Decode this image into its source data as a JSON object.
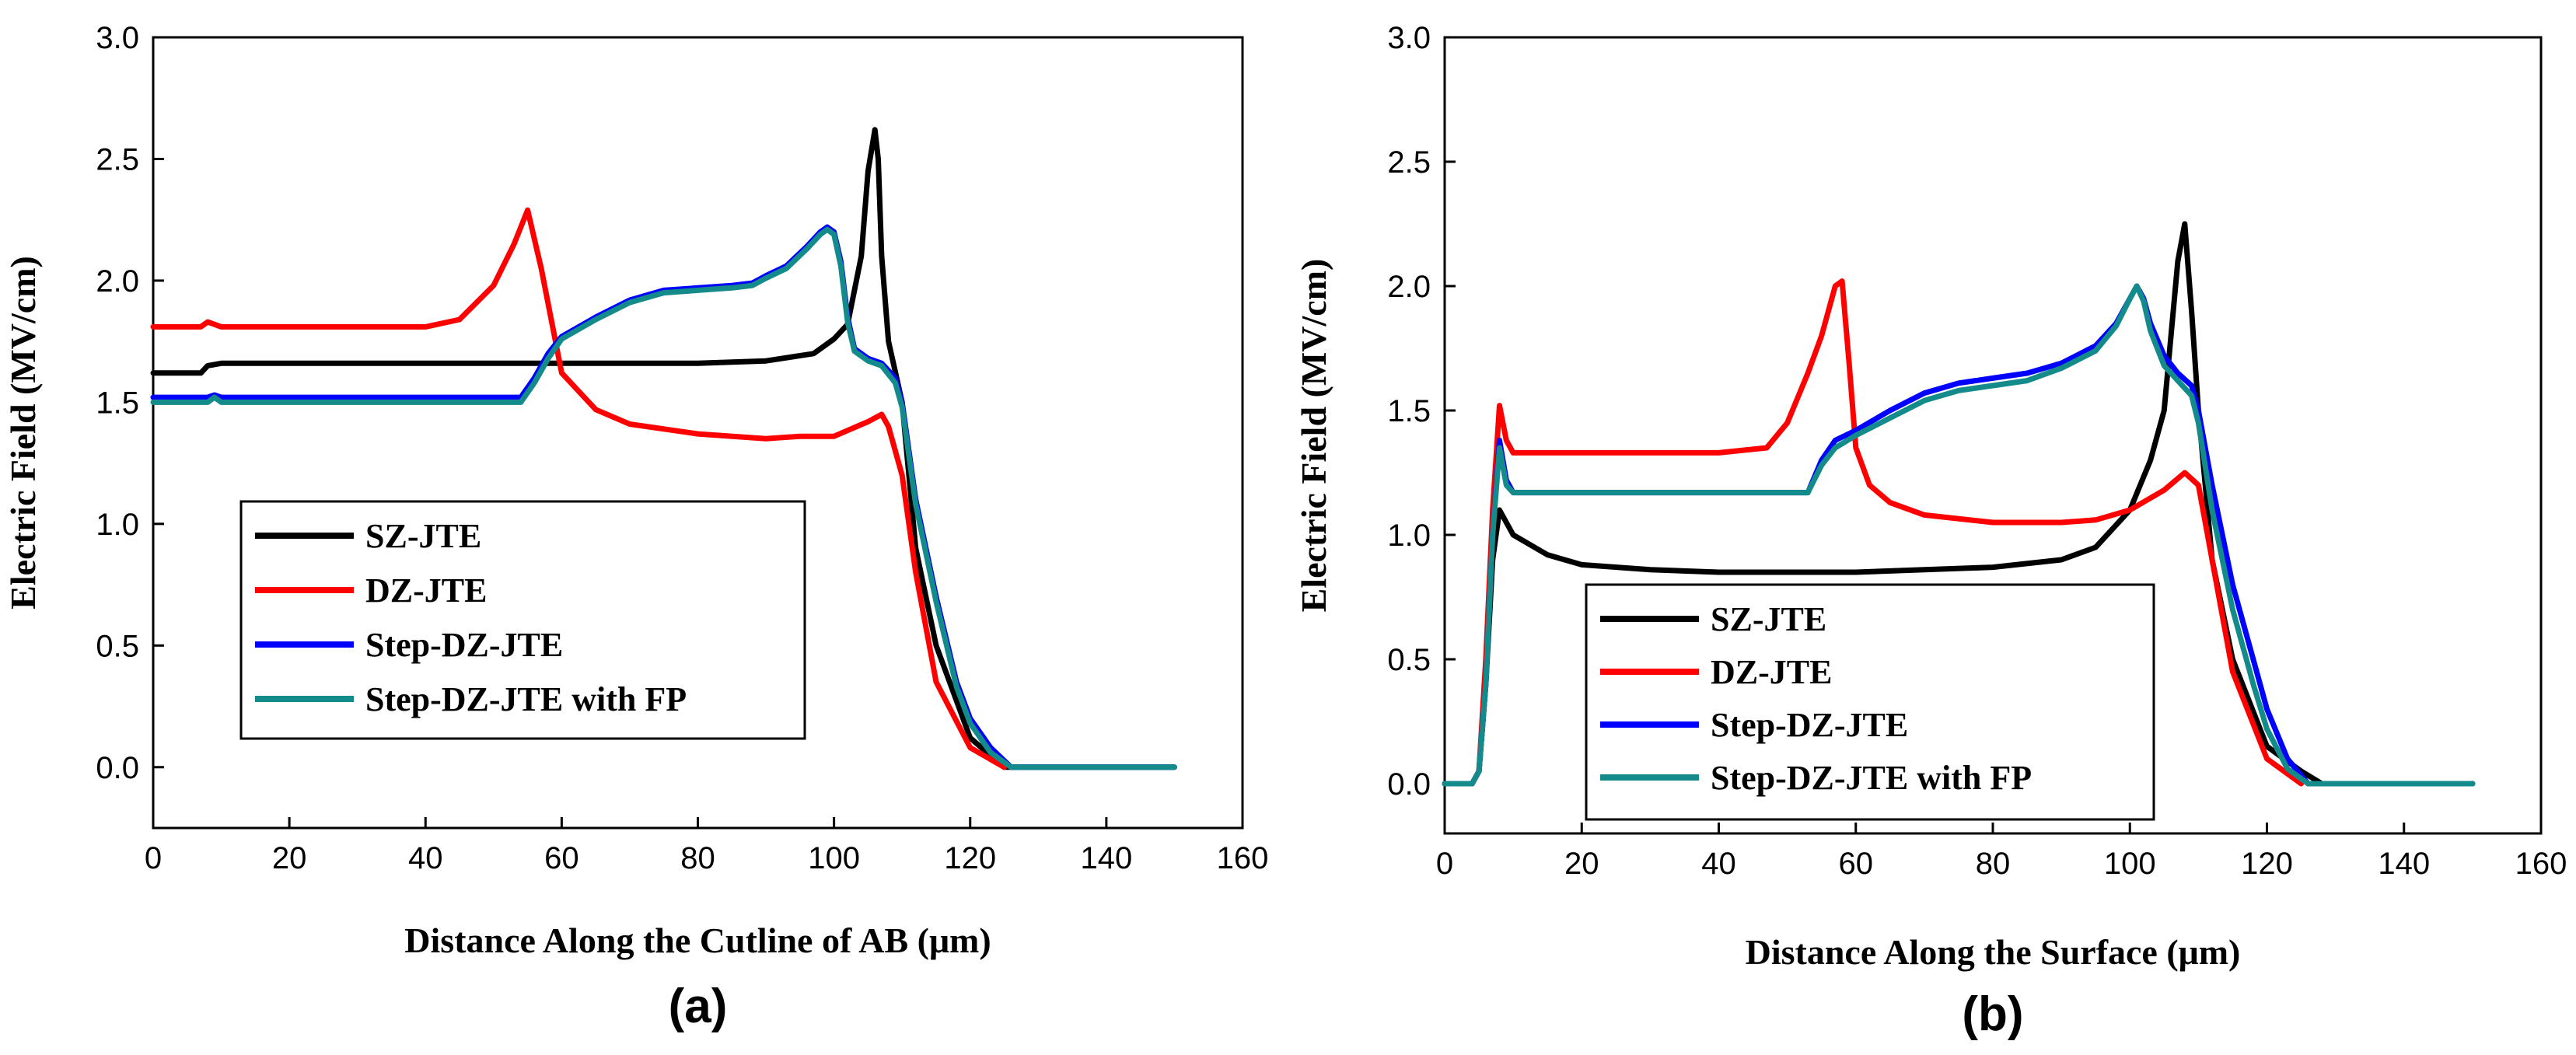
{
  "chart_data": [
    {
      "type": "line",
      "panel_label": "(a)",
      "xlabel": "Distance Along the Cutline of AB (μm)",
      "ylabel": "Electric Field (MV/cm)",
      "xlim": [
        0,
        160
      ],
      "ylim": [
        -0.25,
        3.0
      ],
      "xticks": [
        "0",
        "20",
        "40",
        "60",
        "80",
        "100",
        "120",
        "140",
        "160"
      ],
      "yticks": [
        "0.0",
        "0.5",
        "1.0",
        "1.5",
        "2.0",
        "2.5",
        "3.0"
      ],
      "grid": false,
      "legend_position": "lower-left",
      "series": [
        {
          "name": "SZ-JTE",
          "color": "#000000",
          "x": [
            0,
            7,
            8,
            10,
            20,
            40,
            60,
            80,
            90,
            97,
            100,
            102,
            104,
            105,
            106,
            106.5,
            107,
            108,
            110,
            112,
            115,
            120,
            125,
            150
          ],
          "y": [
            1.62,
            1.62,
            1.65,
            1.66,
            1.66,
            1.66,
            1.66,
            1.66,
            1.67,
            1.7,
            1.76,
            1.82,
            2.1,
            2.45,
            2.62,
            2.5,
            2.1,
            1.75,
            1.5,
            0.9,
            0.5,
            0.12,
            0.0,
            0.0
          ]
        },
        {
          "name": "DZ-JTE",
          "color": "#ff0000",
          "x": [
            0,
            7,
            8,
            10,
            20,
            40,
            45,
            50,
            53,
            55,
            57,
            60,
            65,
            70,
            80,
            90,
            95,
            100,
            105,
            107,
            108,
            110,
            112,
            115,
            120,
            125
          ],
          "y": [
            1.81,
            1.81,
            1.83,
            1.81,
            1.81,
            1.81,
            1.84,
            1.98,
            2.15,
            2.29,
            2.05,
            1.62,
            1.47,
            1.41,
            1.37,
            1.35,
            1.36,
            1.36,
            1.42,
            1.45,
            1.4,
            1.2,
            0.8,
            0.35,
            0.08,
            0.0
          ]
        },
        {
          "name": "Step-DZ-JTE",
          "color": "#0000ff",
          "x": [
            0,
            8,
            9,
            10,
            20,
            40,
            54,
            56,
            58,
            60,
            65,
            70,
            75,
            80,
            85,
            88,
            90,
            93,
            96,
            98,
            99,
            100,
            101,
            102,
            103,
            105,
            107,
            109,
            110,
            112,
            115,
            118,
            120,
            123,
            126,
            150
          ],
          "y": [
            1.52,
            1.52,
            1.53,
            1.52,
            1.52,
            1.52,
            1.52,
            1.6,
            1.7,
            1.77,
            1.85,
            1.92,
            1.96,
            1.97,
            1.98,
            1.99,
            2.02,
            2.06,
            2.14,
            2.2,
            2.22,
            2.2,
            2.08,
            1.85,
            1.72,
            1.68,
            1.66,
            1.6,
            1.5,
            1.1,
            0.7,
            0.35,
            0.2,
            0.08,
            0.0,
            0.0
          ]
        },
        {
          "name": "Step-DZ-JTE with FP",
          "color": "#138b8b",
          "x": [
            0,
            8,
            9,
            10,
            20,
            40,
            54,
            56,
            58,
            60,
            65,
            70,
            75,
            80,
            85,
            88,
            90,
            93,
            96,
            98,
            99,
            100,
            101,
            102,
            103,
            105,
            107,
            109,
            110,
            112,
            115,
            118,
            120,
            123,
            126,
            150
          ],
          "y": [
            1.5,
            1.5,
            1.52,
            1.5,
            1.5,
            1.5,
            1.5,
            1.58,
            1.68,
            1.76,
            1.84,
            1.91,
            1.95,
            1.96,
            1.97,
            1.98,
            2.01,
            2.05,
            2.13,
            2.19,
            2.21,
            2.19,
            2.06,
            1.83,
            1.71,
            1.67,
            1.65,
            1.58,
            1.48,
            1.08,
            0.68,
            0.33,
            0.18,
            0.06,
            0.0,
            0.0
          ]
        }
      ]
    },
    {
      "type": "line",
      "panel_label": "(b)",
      "xlabel": "Distance Along the Surface (μm)",
      "ylabel": "Electric Field (MV/cm)",
      "xlim": [
        0,
        160
      ],
      "ylim": [
        -0.2,
        3.0
      ],
      "xticks": [
        "0",
        "20",
        "40",
        "60",
        "80",
        "100",
        "120",
        "140",
        "160"
      ],
      "yticks": [
        "0.0",
        "0.5",
        "1.0",
        "1.5",
        "2.0",
        "2.5",
        "3.0"
      ],
      "grid": false,
      "legend_position": "lower-left",
      "series": [
        {
          "name": "SZ-JTE",
          "color": "#000000",
          "x": [
            0,
            4,
            5,
            6,
            7,
            8,
            10,
            15,
            20,
            30,
            40,
            60,
            80,
            90,
            95,
            100,
            103,
            105,
            106,
            107,
            108,
            109,
            110,
            112,
            115,
            120,
            125,
            128,
            150
          ],
          "y": [
            0.0,
            0.0,
            0.05,
            0.4,
            0.9,
            1.1,
            1.0,
            0.92,
            0.88,
            0.86,
            0.85,
            0.85,
            0.87,
            0.9,
            0.95,
            1.1,
            1.3,
            1.5,
            1.8,
            2.1,
            2.25,
            1.9,
            1.5,
            0.9,
            0.5,
            0.15,
            0.05,
            0.0,
            0.0
          ]
        },
        {
          "name": "DZ-JTE",
          "color": "#ff0000",
          "x": [
            0,
            4,
            5,
            6,
            7,
            8,
            9,
            10,
            20,
            40,
            47,
            50,
            53,
            55,
            57,
            58,
            59,
            60,
            62,
            65,
            70,
            80,
            90,
            95,
            100,
            105,
            108,
            110,
            112,
            115,
            120,
            125
          ],
          "y": [
            0.0,
            0.0,
            0.05,
            0.5,
            1.1,
            1.52,
            1.38,
            1.33,
            1.33,
            1.33,
            1.35,
            1.45,
            1.65,
            1.8,
            2.0,
            2.02,
            1.7,
            1.35,
            1.2,
            1.13,
            1.08,
            1.05,
            1.05,
            1.06,
            1.1,
            1.18,
            1.25,
            1.2,
            0.9,
            0.45,
            0.1,
            0.0
          ]
        },
        {
          "name": "Step-DZ-JTE",
          "color": "#0000ff",
          "x": [
            0,
            4,
            5,
            6,
            7,
            8,
            9,
            10,
            20,
            40,
            53,
            55,
            57,
            60,
            65,
            70,
            75,
            80,
            85,
            90,
            95,
            98,
            100,
            101,
            102,
            103,
            105,
            107,
            109,
            110,
            112,
            115,
            118,
            120,
            123,
            126,
            150
          ],
          "y": [
            0.0,
            0.0,
            0.05,
            0.4,
            1.0,
            1.38,
            1.22,
            1.17,
            1.17,
            1.17,
            1.17,
            1.3,
            1.38,
            1.42,
            1.5,
            1.57,
            1.61,
            1.63,
            1.65,
            1.69,
            1.76,
            1.85,
            1.95,
            2.0,
            1.95,
            1.85,
            1.72,
            1.65,
            1.6,
            1.5,
            1.2,
            0.8,
            0.5,
            0.3,
            0.1,
            0.0,
            0.0
          ]
        },
        {
          "name": "Step-DZ-JTE with FP",
          "color": "#138b8b",
          "x": [
            0,
            4,
            5,
            6,
            7,
            8,
            9,
            10,
            20,
            40,
            53,
            55,
            57,
            60,
            65,
            70,
            75,
            80,
            85,
            90,
            95,
            98,
            100,
            101,
            102,
            103,
            105,
            107,
            109,
            110,
            112,
            115,
            118,
            120,
            123,
            126,
            150
          ],
          "y": [
            0.0,
            0.0,
            0.05,
            0.4,
            1.0,
            1.35,
            1.2,
            1.17,
            1.17,
            1.17,
            1.17,
            1.28,
            1.35,
            1.4,
            1.47,
            1.54,
            1.58,
            1.6,
            1.62,
            1.67,
            1.74,
            1.84,
            1.95,
            2.0,
            1.94,
            1.82,
            1.68,
            1.62,
            1.56,
            1.45,
            1.1,
            0.7,
            0.4,
            0.22,
            0.06,
            0.0,
            0.0
          ]
        }
      ]
    }
  ]
}
